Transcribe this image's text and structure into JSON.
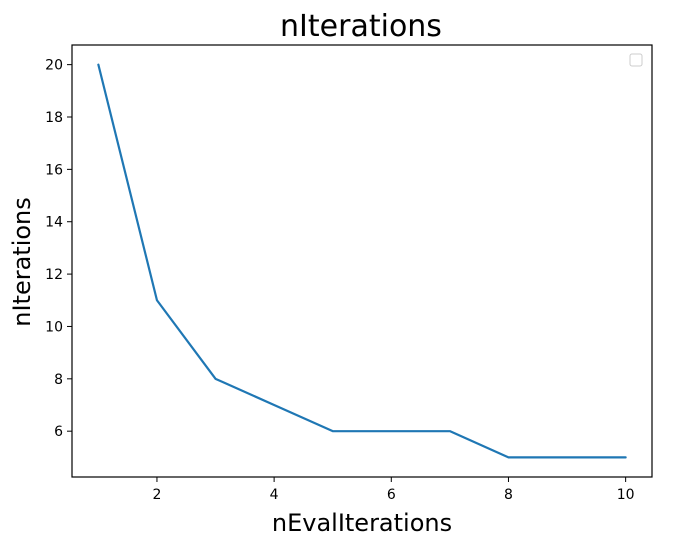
{
  "chart_data": {
    "type": "line",
    "title": "nIterations",
    "xlabel": "nEvalIterations",
    "ylabel": "nIterations",
    "x": [
      1,
      2,
      3,
      4,
      5,
      6,
      7,
      8,
      9,
      10
    ],
    "series": [
      {
        "values": [
          20,
          11,
          8,
          7,
          6,
          6,
          6,
          5,
          5,
          5
        ],
        "color": "#1f77b4"
      }
    ],
    "xlim": [
      0.55,
      10.45
    ],
    "ylim": [
      4.25,
      20.75
    ],
    "xticks": [
      2,
      4,
      6,
      8,
      10
    ],
    "yticks": [
      6,
      8,
      10,
      12,
      14,
      16,
      18,
      20
    ],
    "grid": false,
    "legend": "top-right (empty)"
  }
}
